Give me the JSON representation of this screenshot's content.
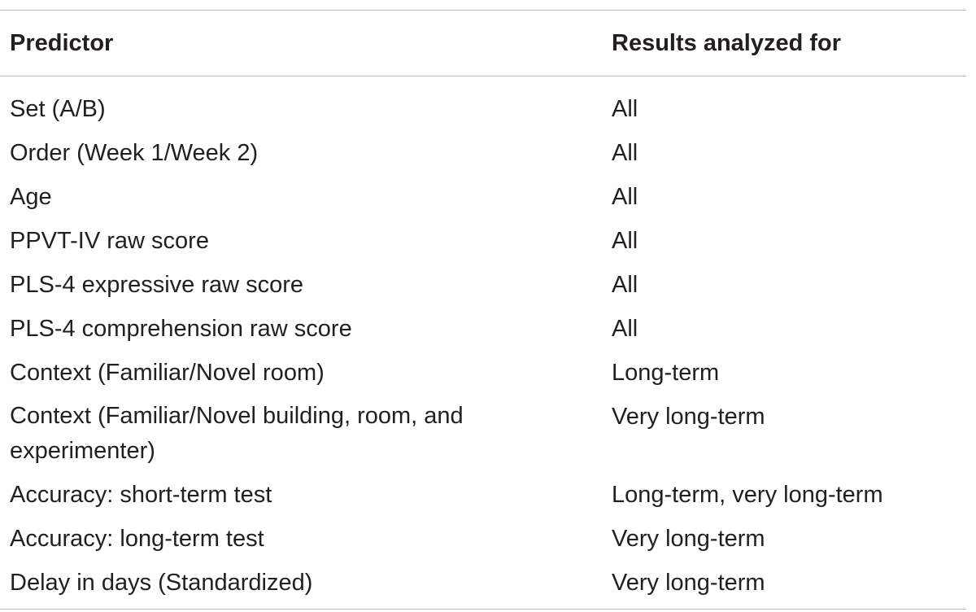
{
  "table": {
    "headers": [
      "Predictor",
      "Results analyzed for"
    ],
    "rows": [
      [
        "Set (A/B)",
        "All"
      ],
      [
        "Order (Week 1/Week 2)",
        "All"
      ],
      [
        "Age",
        "All"
      ],
      [
        "PPVT-IV raw score",
        "All"
      ],
      [
        "PLS-4 expressive raw score",
        "All"
      ],
      [
        "PLS-4 comprehension raw score",
        "All"
      ],
      [
        "Context (Familiar/Novel room)",
        "Long-term"
      ],
      [
        "Context (Familiar/Novel building, room, and experimenter)",
        "Very long-term"
      ],
      [
        "Accuracy: short-term test",
        "Long-term, very long-term"
      ],
      [
        "Accuracy: long-term test",
        "Very long-term"
      ],
      [
        "Delay in days (Standardized)",
        "Very long-term"
      ]
    ]
  }
}
